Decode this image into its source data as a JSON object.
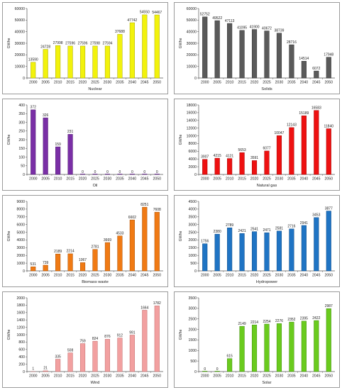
{
  "chart_data": [
    {
      "type": "bar",
      "xlabel": "Nuclear",
      "ylabel": "GWhe",
      "ylim": [
        0,
        60000
      ],
      "ytick_step": 10000,
      "categories": [
        "2000",
        "2005",
        "2010",
        "2015",
        "2020",
        "2025",
        "2030",
        "2035",
        "2040",
        "2045",
        "2050"
      ],
      "values": [
        13590,
        24728,
        27998,
        27596,
        27596,
        27598,
        27594,
        37688,
        47742,
        54550,
        54467
      ],
      "labels": [
        "13590",
        "24728",
        "27998",
        "27596",
        "27596",
        "27598",
        "27594",
        "37688",
        "47742",
        "54550",
        "54467"
      ],
      "color": "#f2f20c",
      "edge": "#a7a700"
    },
    {
      "type": "bar",
      "xlabel": "Solids",
      "ylabel": "GWhe",
      "ylim": [
        0,
        60000
      ],
      "ytick_step": 10000,
      "categories": [
        "2000",
        "2005",
        "2010",
        "2015",
        "2020",
        "2025",
        "2030",
        "2035",
        "2040",
        "2045",
        "2050"
      ],
      "values": [
        52752,
        49522,
        47113,
        41095,
        41900,
        40672,
        38739,
        28716,
        14514,
        6072,
        17948
      ],
      "labels": [
        "52752",
        "49522",
        "47113",
        "41095",
        "41900",
        "40672",
        "38739",
        "28716",
        "14514",
        "6072",
        "17948"
      ],
      "color": "#5a5a5a",
      "edge": "#2e2e2e"
    },
    {
      "type": "bar",
      "xlabel": "Oil",
      "ylabel": "GWhe",
      "ylim": [
        0,
        400
      ],
      "ytick_step": 50,
      "categories": [
        "2000",
        "2005",
        "2010",
        "2015",
        "2020",
        "2025",
        "2030",
        "2035",
        "2040",
        "2045",
        "2050"
      ],
      "values": [
        372,
        326,
        159,
        231,
        0,
        0,
        0,
        0,
        0,
        0,
        0
      ],
      "labels": [
        "372",
        "326",
        "159",
        "231",
        "0",
        "0",
        "0",
        "0",
        "0",
        "0",
        "0"
      ],
      "color": "#7a2fa6",
      "edge": "#4e1a70"
    },
    {
      "type": "bar",
      "xlabel": "Natural gas",
      "ylabel": "GWhe",
      "ylim": [
        0,
        18000
      ],
      "ytick_step": 2000,
      "categories": [
        "2000",
        "2005",
        "2010",
        "2015",
        "2020",
        "2025",
        "2030",
        "2035",
        "2040",
        "2045",
        "2050"
      ],
      "values": [
        3907,
        4215,
        4121,
        5653,
        3591,
        6077,
        10047,
        12143,
        15189,
        16583,
        11840
      ],
      "labels": [
        "3907",
        "4215",
        "4121",
        "5653",
        "3591",
        "6077",
        "10047",
        "12143",
        "15189",
        "16583",
        "11840"
      ],
      "color": "#ee1111",
      "edge": "#a00000"
    },
    {
      "type": "bar",
      "xlabel": "Biomass waste",
      "ylabel": "GWhe",
      "ylim": [
        0,
        9000
      ],
      "ytick_step": 1000,
      "categories": [
        "2000",
        "2005",
        "2010",
        "2015",
        "2020",
        "2025",
        "2030",
        "2035",
        "2040",
        "2045",
        "2050"
      ],
      "values": [
        531,
        739,
        2189,
        2214,
        1067,
        2781,
        3669,
        4533,
        6602,
        8251,
        7608
      ],
      "labels": [
        "531",
        "739",
        "2189",
        "2214",
        "1067",
        "2781",
        "3669",
        "4533",
        "6602",
        "8251",
        "7608"
      ],
      "color": "#f07a14",
      "edge": "#a84e00"
    },
    {
      "type": "bar",
      "xlabel": "Hydropower",
      "ylabel": "GWhe",
      "ylim": [
        0,
        4500
      ],
      "ytick_step": 500,
      "categories": [
        "2000",
        "2005",
        "2010",
        "2015",
        "2020",
        "2025",
        "2030",
        "2035",
        "2040",
        "2045",
        "2050"
      ],
      "values": [
        1756,
        2380,
        2789,
        2421,
        2541,
        2471,
        2581,
        2716,
        2941,
        3453,
        3877
      ],
      "labels": [
        "1756",
        "2380",
        "2789",
        "2421",
        "2541",
        "2471",
        "2581",
        "2716",
        "2941",
        "3453",
        "3877"
      ],
      "color": "#1f74c4",
      "edge": "#0e4a86"
    },
    {
      "type": "bar",
      "xlabel": "Wind",
      "ylabel": "GWhe",
      "ylim": [
        0,
        2000
      ],
      "ytick_step": 200,
      "categories": [
        "2000",
        "2005",
        "2010",
        "2015",
        "2020",
        "2025",
        "2030",
        "2035",
        "2040",
        "2045",
        "2050"
      ],
      "values": [
        1,
        21,
        335,
        508,
        759,
        824,
        876,
        912,
        991,
        1664,
        1782
      ],
      "labels": [
        "1",
        "21",
        "335",
        "508",
        "759",
        "824",
        "876",
        "912",
        "991",
        "1664",
        "1782"
      ],
      "color": "#f2a0a0",
      "edge": "#c06a6a"
    },
    {
      "type": "bar",
      "xlabel": "Solar",
      "ylabel": "GWhe",
      "ylim": [
        0,
        3500
      ],
      "ytick_step": 500,
      "categories": [
        "2000",
        "2005",
        "2010",
        "2015",
        "2020",
        "2025",
        "2030",
        "2035",
        "2040",
        "2045",
        "2050"
      ],
      "values": [
        0,
        0,
        615,
        2149,
        2214,
        2254,
        2276,
        2352,
        2395,
        2422,
        2987
      ],
      "labels": [
        "0",
        "0",
        "615",
        "2149",
        "2214",
        "2254",
        "2276",
        "2352",
        "2395",
        "2422",
        "2987"
      ],
      "color": "#6acb1e",
      "edge": "#3c8a08"
    }
  ]
}
